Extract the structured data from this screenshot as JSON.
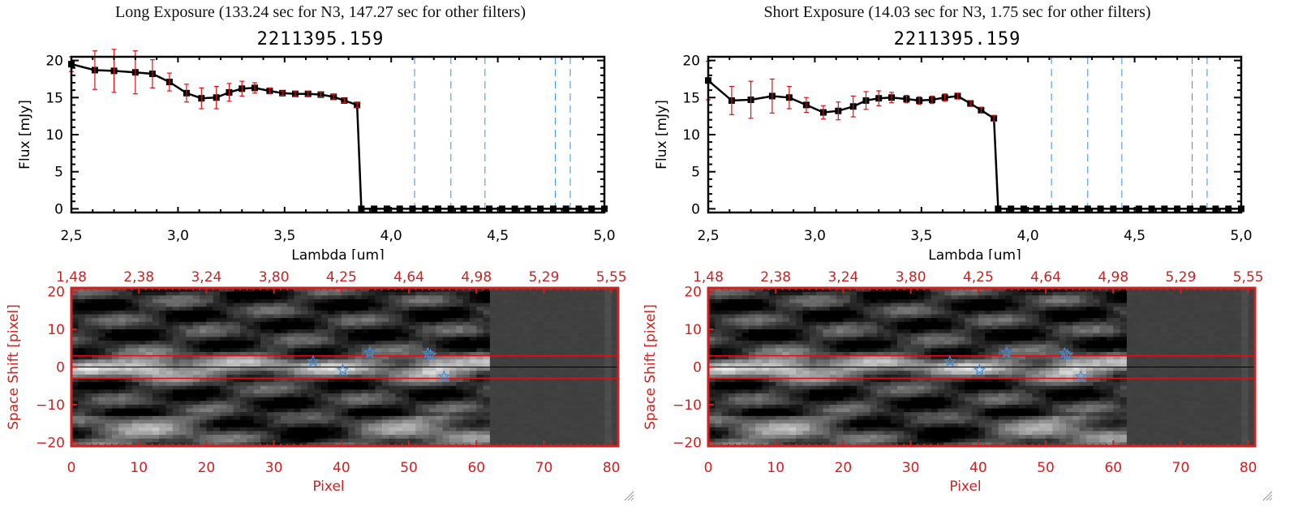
{
  "panels": [
    {
      "title": "Long Exposure (133.24 sec for N3, 147.27 sec for other filters)",
      "object_id": "2211395.159"
    },
    {
      "title": "Short Exposure (14.03 sec for N3, 1.75 sec for other filters)",
      "object_id": "2211395.159"
    }
  ],
  "chart_data": [
    {
      "type": "line",
      "title": "2211395.159",
      "xlabel": "Lambda [um]",
      "ylabel": "Flux [mJy]",
      "xlim": [
        2.5,
        5.0
      ],
      "ylim": [
        -0.5,
        20.5
      ],
      "xticks": [
        "2.5",
        "3.0",
        "3.5",
        "4.0",
        "4.5",
        "5.0"
      ],
      "yticks": [
        "0",
        "5",
        "10",
        "15",
        "20"
      ],
      "x": [
        2.5,
        2.61,
        2.7,
        2.8,
        2.88,
        2.96,
        3.04,
        3.11,
        3.18,
        3.24,
        3.3,
        3.36,
        3.43,
        3.49,
        3.55,
        3.61,
        3.67,
        3.73,
        3.78,
        3.84,
        3.86,
        3.92,
        3.98,
        4.04,
        4.1,
        4.16,
        4.22,
        4.28,
        4.34,
        4.4,
        4.46,
        4.52,
        4.58,
        4.64,
        4.7,
        4.76,
        4.82,
        4.88,
        4.94,
        5.0
      ],
      "series": [
        {
          "name": "flux",
          "values": [
            19.5,
            18.7,
            18.6,
            18.4,
            18.2,
            17.1,
            15.6,
            14.9,
            15.0,
            15.7,
            16.2,
            16.3,
            15.9,
            15.6,
            15.5,
            15.5,
            15.4,
            15.1,
            14.6,
            14.0,
            0,
            0,
            0,
            0,
            0,
            0,
            0,
            0,
            0,
            0,
            0,
            0,
            0,
            0,
            0,
            0,
            0,
            0,
            0,
            0
          ],
          "errors": [
            1.0,
            2.6,
            2.9,
            2.9,
            1.9,
            1.2,
            1.2,
            1.4,
            1.5,
            1.2,
            1.0,
            0.7,
            0.4,
            0.3,
            0.3,
            0.3,
            0.3,
            0.3,
            0.3,
            0.3,
            0,
            0,
            0,
            0,
            0,
            0,
            0,
            0,
            0,
            0,
            0,
            0,
            0,
            0,
            0,
            0,
            0,
            0,
            0,
            0
          ]
        }
      ],
      "vlines": [
        4.11,
        4.28,
        4.44,
        4.77,
        4.84
      ],
      "hline_zero": 0,
      "colors": {
        "line": "#000000",
        "error": "#e01010",
        "vline": "#3a8fe0",
        "zero": "#e01010"
      }
    },
    {
      "type": "line",
      "title": "2211395.159",
      "xlabel": "Lambda [um]",
      "ylabel": "Flux [mJy]",
      "xlim": [
        2.5,
        5.0
      ],
      "ylim": [
        -0.5,
        20.5
      ],
      "xticks": [
        "2.5",
        "3.0",
        "3.5",
        "4.0",
        "4.5",
        "5.0"
      ],
      "yticks": [
        "0",
        "5",
        "10",
        "15",
        "20"
      ],
      "x": [
        2.5,
        2.61,
        2.7,
        2.8,
        2.88,
        2.96,
        3.04,
        3.11,
        3.18,
        3.24,
        3.3,
        3.36,
        3.43,
        3.49,
        3.55,
        3.61,
        3.67,
        3.73,
        3.78,
        3.84,
        3.86,
        3.92,
        3.98,
        4.04,
        4.1,
        4.16,
        4.22,
        4.28,
        4.34,
        4.4,
        4.46,
        4.52,
        4.58,
        4.64,
        4.7,
        4.76,
        4.82,
        4.88,
        4.94,
        5.0
      ],
      "series": [
        {
          "name": "flux",
          "values": [
            17.3,
            14.6,
            14.7,
            15.2,
            15.0,
            14.0,
            13.0,
            13.2,
            13.8,
            14.6,
            14.9,
            15.0,
            14.8,
            14.6,
            14.7,
            15.0,
            15.2,
            14.2,
            13.3,
            12.2,
            0,
            0,
            0,
            0,
            0,
            0,
            0,
            0,
            0,
            0,
            0,
            0,
            0,
            0,
            0,
            0,
            0,
            0,
            0,
            0
          ],
          "errors": [
            2.6,
            1.9,
            2.5,
            2.3,
            1.5,
            1.0,
            0.9,
            1.2,
            1.4,
            1.2,
            1.0,
            0.7,
            0.5,
            0.5,
            0.5,
            0.5,
            0.4,
            0.4,
            0.4,
            0.4,
            0,
            0,
            0,
            0,
            0,
            0,
            0,
            0,
            0,
            0,
            0,
            0,
            0,
            0,
            0,
            0,
            0,
            0,
            0,
            0
          ]
        }
      ],
      "vlines": [
        4.11,
        4.28,
        4.44,
        4.77,
        4.84
      ],
      "hline_zero": 0,
      "colors": {
        "line": "#000000",
        "error": "#e01010",
        "vline": "#3a8fe0",
        "zero": "#e01010"
      }
    },
    {
      "type": "heatmap",
      "xlabel": "Pixel",
      "ylabel": "Space Shift [pixel]",
      "xlim": [
        0,
        81
      ],
      "ylim": [
        -21,
        21
      ],
      "xticks": [
        "0",
        "10",
        "20",
        "30",
        "40",
        "50",
        "60",
        "70",
        "80"
      ],
      "yticks": [
        "-20",
        "-10",
        "0",
        "10",
        "20"
      ],
      "top_xticks": [
        "1.48",
        "2.38",
        "3.24",
        "3.80",
        "4.25",
        "4.64",
        "4.98",
        "5.29",
        "5.55"
      ],
      "aperture_lines": [
        3,
        -3
      ],
      "center_line": 0,
      "stars": [
        [
          35.8,
          1.5
        ],
        [
          40.2,
          -0.8
        ],
        [
          44.2,
          3.8
        ],
        [
          52.8,
          3.6
        ],
        [
          53.2,
          3.2
        ],
        [
          55.2,
          -2.5
        ]
      ],
      "colors": {
        "axis": "#d02020",
        "aperture": "#e01010",
        "center": "#000000",
        "star": "#3a8fe0"
      }
    },
    {
      "type": "heatmap",
      "xlabel": "Pixel",
      "ylabel": "Space Shift [pixel]",
      "xlim": [
        0,
        81
      ],
      "ylim": [
        -21,
        21
      ],
      "xticks": [
        "0",
        "10",
        "20",
        "30",
        "40",
        "50",
        "60",
        "70",
        "80"
      ],
      "yticks": [
        "-20",
        "-10",
        "0",
        "10",
        "20"
      ],
      "top_xticks": [
        "1.48",
        "2.38",
        "3.24",
        "3.80",
        "4.25",
        "4.64",
        "4.98",
        "5.29",
        "5.55"
      ],
      "aperture_lines": [
        3,
        -3
      ],
      "center_line": 0,
      "stars": [
        [
          35.8,
          1.5
        ],
        [
          40.2,
          -0.8
        ],
        [
          44.2,
          3.8
        ],
        [
          52.8,
          3.6
        ],
        [
          53.2,
          3.2
        ],
        [
          55.2,
          -2.5
        ]
      ],
      "colors": {
        "axis": "#d02020",
        "aperture": "#e01010",
        "center": "#000000",
        "star": "#3a8fe0"
      }
    }
  ]
}
